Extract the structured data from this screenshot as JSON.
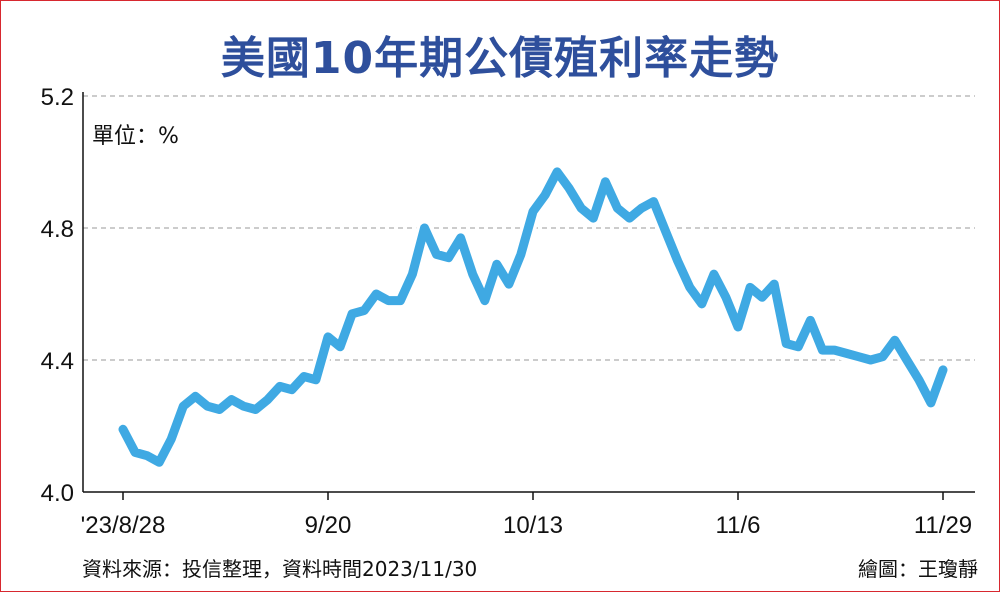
{
  "chart_data": {
    "type": "line",
    "title": "美國10年期公債殖利率走勢",
    "unit_label": "單位：%",
    "ylim": [
      4.0,
      5.2
    ],
    "yticks": [
      "4.0",
      "4.4",
      "4.8",
      "5.2"
    ],
    "grid": true,
    "line_color": "#3fa9e3",
    "x_tick_labels": [
      {
        "index": 0,
        "label": "'23/8/28"
      },
      {
        "index": 17,
        "label": "9/20"
      },
      {
        "index": 34,
        "label": "10/13"
      },
      {
        "index": 51,
        "label": "11/6"
      },
      {
        "index": 68,
        "label": "11/29"
      }
    ],
    "series": [
      {
        "values": [
          4.19,
          4.12,
          4.11,
          4.09,
          4.16,
          4.26,
          4.29,
          4.26,
          4.25,
          4.28,
          4.26,
          4.25,
          4.28,
          4.32,
          4.31,
          4.35,
          4.34,
          4.47,
          4.44,
          4.54,
          4.55,
          4.6,
          4.58,
          4.58,
          4.66,
          4.8,
          4.72,
          4.71,
          4.77,
          4.66,
          4.58,
          4.69,
          4.63,
          4.72,
          4.85,
          4.9,
          4.97,
          4.92,
          4.86,
          4.83,
          4.94,
          4.86,
          4.83,
          4.86,
          4.88,
          4.79,
          4.7,
          4.62,
          4.57,
          4.66,
          4.59,
          4.5,
          4.62,
          4.59,
          4.63,
          4.45,
          4.44,
          4.52,
          4.43,
          4.43,
          4.42,
          4.41,
          4.4,
          4.41,
          4.46,
          4.4,
          4.34,
          4.27,
          4.37
        ]
      }
    ]
  },
  "footer": {
    "source": "資料來源：投信整理，資料時間2023/11/30",
    "credit": "繪圖：王瓊靜"
  }
}
